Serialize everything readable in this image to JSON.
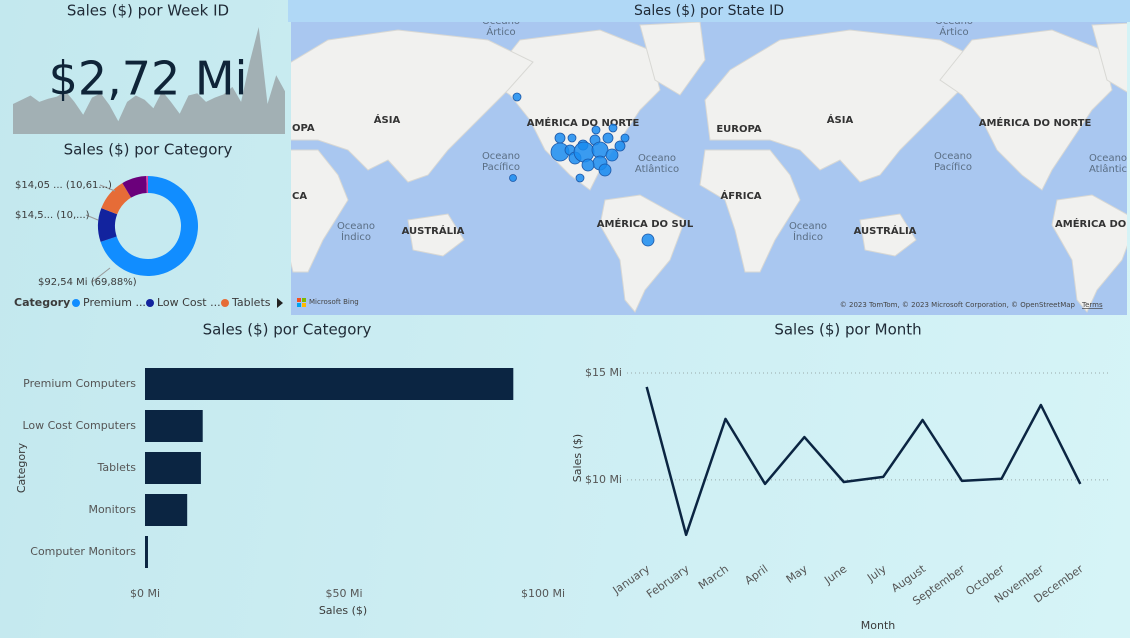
{
  "card": {
    "title": "Sales ($) por Week ID",
    "value": "$2,72 Mi"
  },
  "map": {
    "title": "Sales ($) por State ID",
    "labels": [
      "ÁSIA",
      "AMÉRICA DO NORTE",
      "EUROPA",
      "ÁSIA",
      "AMÉRICA DO NORTE",
      "ÁFRICA",
      "AMÉRICA DO SUL",
      "AUSTRÁLIA",
      "AUSTRÁLIA",
      "OPA",
      "CA",
      "AMÉRICA DO S"
    ],
    "oceans": [
      {
        "lines": [
          "Oceano",
          "Ártico"
        ]
      },
      {
        "lines": [
          "Oceano",
          "Ártico"
        ]
      },
      {
        "lines": [
          "Oceano",
          "Pacífico"
        ]
      },
      {
        "lines": [
          "Oceano",
          "Pacífico"
        ]
      },
      {
        "lines": [
          "Oceano",
          "Atlântico"
        ]
      },
      {
        "lines": [
          "Oceano",
          "Atlântic"
        ]
      },
      {
        "lines": [
          "Oceano",
          "Índico"
        ]
      },
      {
        "lines": [
          "Oceano",
          "Índico"
        ]
      }
    ],
    "logo": "Microsoft Bing",
    "attribution": "© 2023 TomTom, © 2023 Microsoft Corporation, © OpenStreetMap",
    "terms": "Terms"
  },
  "chart_data": [
    {
      "type": "area",
      "color": "#a2b0b4",
      "values": [
        28,
        32,
        36,
        30,
        33,
        35,
        40,
        30,
        18,
        34,
        38,
        27,
        12,
        30,
        36,
        32,
        24,
        40,
        30,
        19,
        36,
        38,
        30,
        34,
        37,
        44,
        30,
        68,
        100,
        28,
        55,
        40
      ]
    },
    {
      "type": "donut",
      "title": "Sales ($) por Category",
      "categories": [
        "Premium Computers",
        "Low Cost Computers",
        "Tablets",
        "Monitors",
        "Computer Monitors"
      ],
      "values": [
        92.54,
        14.5,
        14.05,
        10.6,
        0.75
      ],
      "value_labels": [
        "$92,54 Mi (69,88%)",
        "$14,5... (10,...)",
        "$14,05 ... (10,61...)",
        null,
        null
      ],
      "colors": [
        "#118dff",
        "#12239e",
        "#e66c37",
        "#6b007b",
        "#e044a7"
      ],
      "legend_title": "Category",
      "legend_labels": [
        "Premium ...",
        "Low Cost ...",
        "Tablets"
      ]
    },
    {
      "type": "hbar",
      "title": "Sales ($) por Category",
      "categories": [
        "Premium Computers",
        "Low Cost Computers",
        "Tablets",
        "Monitors",
        "Computer Monitors"
      ],
      "values": [
        92.54,
        14.5,
        14.05,
        10.6,
        0.75
      ],
      "color": "#0b2542",
      "xlim": [
        0,
        100
      ],
      "xticks": [
        {
          "value": 0,
          "label": "$0 Mi"
        },
        {
          "value": 50,
          "label": "$50 Mi"
        },
        {
          "value": 100,
          "label": "$100 Mi"
        }
      ],
      "x_label": "Sales ($)",
      "y_label": "Category"
    },
    {
      "type": "line",
      "title": "Sales ($) por Month",
      "categories": [
        "January",
        "February",
        "March",
        "April",
        "May",
        "June",
        "July",
        "August",
        "September",
        "October",
        "November",
        "December"
      ],
      "values": [
        14.35,
        7.43,
        12.85,
        9.81,
        12.0,
        9.9,
        10.14,
        12.8,
        9.95,
        10.05,
        13.5,
        9.81
      ],
      "color": "#0b2542",
      "ylim": [
        7,
        15.4
      ],
      "yticks": [
        {
          "value": 10,
          "label": "$10 Mi"
        },
        {
          "value": 15,
          "label": "$15 Mi"
        }
      ],
      "grid": true,
      "x_label": "Month",
      "y_label": "Sales ($)"
    }
  ]
}
